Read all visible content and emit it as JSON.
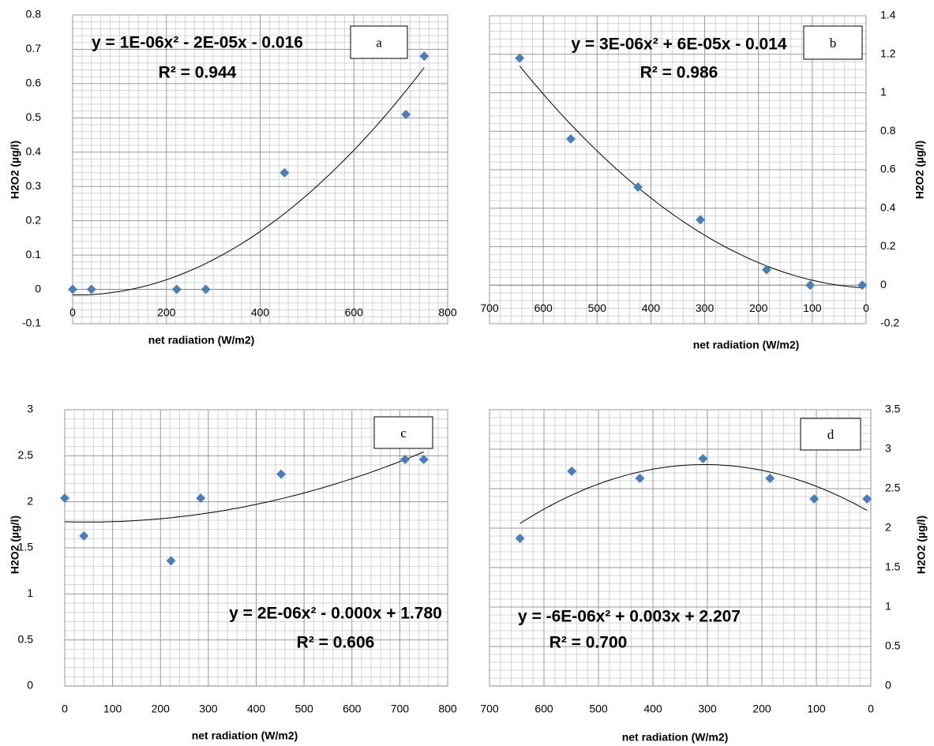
{
  "chart_data": [
    {
      "type": "scatter",
      "label": "a",
      "equation": "y = 1E-06x² - 2E-05x - 0.016",
      "r_squared": "R² = 0.944",
      "x_label": "net radiation (W/m2)",
      "y_label": "H2O2 (µg/l)",
      "x": [
        0,
        40,
        222,
        284,
        452,
        711,
        750
      ],
      "values": [
        0,
        0,
        0,
        0,
        0.34,
        0.51,
        0.68
      ],
      "color": "#4a7ebb",
      "xlim": [
        0,
        800
      ],
      "xticks": [
        0,
        200,
        400,
        600,
        800
      ],
      "ylim": [
        -0.1,
        0.8
      ],
      "yticks": [
        -0.1,
        0,
        0.1,
        0.2,
        0.3,
        0.4,
        0.5,
        0.6,
        0.7,
        0.8
      ],
      "y_axis": "left",
      "grid": true,
      "trendline": "polynomial"
    },
    {
      "type": "scatter",
      "label": "b",
      "equation": "y = 3E-06x² + 6E-05x - 0.014",
      "r_squared": "R² = 0.986",
      "x_label": "net radiation (W/m2)",
      "y_label": "H2O2 (µg/l)",
      "x": [
        644,
        549,
        424,
        308,
        185,
        104,
        7
      ],
      "values": [
        1.18,
        0.76,
        0.51,
        0.34,
        0.08,
        0,
        0
      ],
      "color": "#4a7ebb",
      "xlim": [
        700,
        0
      ],
      "xticks": [
        700,
        600,
        500,
        400,
        300,
        200,
        100,
        0
      ],
      "ylim": [
        -0.2,
        1.4
      ],
      "yticks": [
        -0.2,
        0,
        0.2,
        0.4,
        0.6,
        0.8,
        1,
        1.2,
        1.4
      ],
      "y_axis": "right",
      "grid": true,
      "trendline": "polynomial"
    },
    {
      "type": "scatter",
      "label": "c",
      "equation": "y = 2E-06x² - 0.000x + 1.780",
      "r_squared": "R² = 0.606",
      "x_label": "net radiation (W/m2)",
      "y_label": "H2O2 (µg/l)",
      "x": [
        0,
        40,
        222,
        284,
        452,
        711,
        750
      ],
      "values": [
        2.04,
        1.63,
        1.36,
        2.04,
        2.3,
        2.46,
        2.46
      ],
      "color": "#4a7ebb",
      "xlim": [
        0,
        800
      ],
      "xticks": [
        0,
        100,
        200,
        300,
        400,
        500,
        600,
        700,
        800
      ],
      "ylim": [
        0,
        3
      ],
      "yticks": [
        0,
        0.5,
        1,
        1.5,
        2,
        2.5,
        3
      ],
      "y_axis": "left",
      "grid": true,
      "trendline": "polynomial"
    },
    {
      "type": "scatter",
      "label": "d",
      "equation": "y = -6E-06x² + 0.003x + 2.207",
      "r_squared": "R² = 0.700",
      "x_label": "net radiation (W/m2)",
      "y_label": "H2O2 (µg/l)",
      "x": [
        644,
        549,
        424,
        308,
        185,
        104,
        7
      ],
      "values": [
        1.87,
        2.72,
        2.63,
        2.88,
        2.63,
        2.37,
        2.37
      ],
      "color": "#4a7ebb",
      "xlim": [
        700,
        0
      ],
      "xticks": [
        700,
        600,
        500,
        400,
        300,
        200,
        100,
        0
      ],
      "ylim": [
        0,
        3.5
      ],
      "yticks": [
        0,
        0.5,
        1,
        1.5,
        2,
        2.5,
        3,
        3.5
      ],
      "y_axis": "right",
      "grid": true,
      "trendline": "polynomial"
    }
  ]
}
